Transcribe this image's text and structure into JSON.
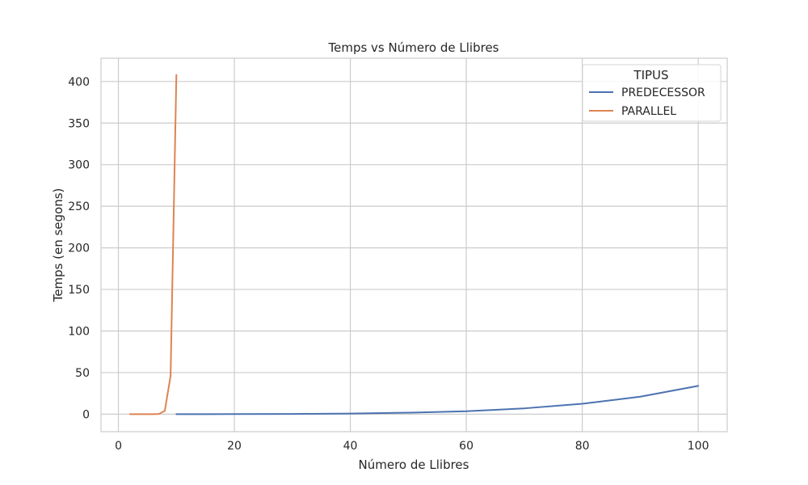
{
  "chart_data": {
    "type": "line",
    "title": "Temps vs Número de Llibres",
    "xlabel": "Número de Llibres",
    "ylabel": "Temps (en segons)",
    "xlim": [
      -3,
      105
    ],
    "ylim": [
      -21,
      428
    ],
    "xticks": [
      0,
      20,
      40,
      60,
      80,
      100
    ],
    "yticks": [
      0,
      50,
      100,
      150,
      200,
      250,
      300,
      350,
      400
    ],
    "grid": true,
    "legend": {
      "title": "TIPUS",
      "placement": "top-right"
    },
    "series": [
      {
        "name": "PREDECESSOR",
        "color": "#4c72b0",
        "x": [
          10,
          20,
          30,
          40,
          50,
          60,
          70,
          80,
          90,
          100
        ],
        "y": [
          0,
          0.1,
          0.3,
          0.8,
          1.8,
          3.5,
          7.0,
          12.5,
          21.0,
          34.0
        ]
      },
      {
        "name": "PARALLEL",
        "color": "#dd8452",
        "x": [
          2,
          3,
          4,
          5,
          6,
          7,
          8,
          9,
          10
        ],
        "y": [
          0,
          0,
          0,
          0,
          0,
          0.3,
          4,
          46,
          408
        ]
      }
    ]
  }
}
